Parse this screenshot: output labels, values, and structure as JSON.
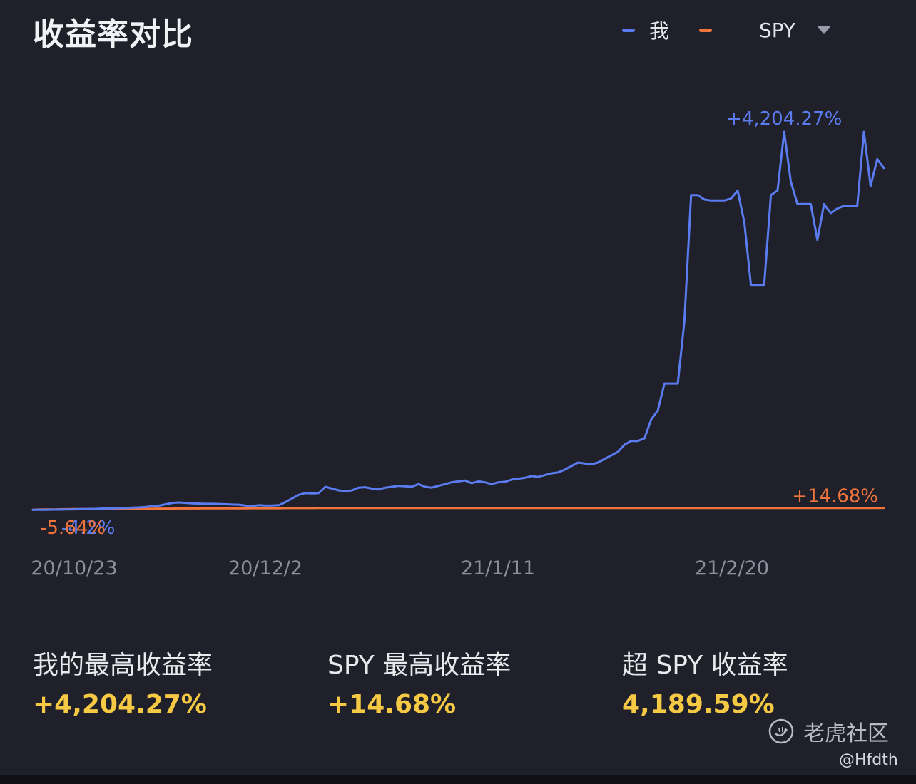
{
  "title": "收益率对比",
  "legend": {
    "series1": "我",
    "series2": "SPY"
  },
  "colors": {
    "mine": "#5b7cf0",
    "spy": "#f0743c",
    "accent": "#f6c944"
  },
  "chart_data": {
    "type": "line",
    "x_ticks": [
      "20/10/23",
      "20/12/2",
      "21/1/11",
      "21/2/20"
    ],
    "series": [
      {
        "name": "我",
        "y": [
          -5.64,
          -5.64,
          -5.64,
          -4.2,
          -4.2,
          -3,
          -2,
          0,
          1,
          3,
          5,
          8,
          10,
          12,
          14,
          18,
          20,
          25,
          35,
          40,
          55,
          70,
          75,
          70,
          65,
          62,
          60,
          60,
          58,
          55,
          52,
          50,
          40,
          35,
          45,
          40,
          42,
          45,
          80,
          120,
          160,
          180,
          175,
          180,
          250,
          230,
          210,
          200,
          210,
          240,
          245,
          230,
          220,
          240,
          250,
          260,
          255,
          250,
          280,
          250,
          240,
          260,
          280,
          300,
          310,
          320,
          290,
          310,
          300,
          280,
          300,
          305,
          330,
          340,
          350,
          370,
          360,
          380,
          400,
          410,
          440,
          480,
          520,
          510,
          500,
          520,
          560,
          600,
          640,
          720,
          760,
          760,
          790,
          1000,
          1100,
          1400,
          1400,
          1400,
          2100,
          3500,
          3500,
          3450,
          3440,
          3440,
          3440,
          3460,
          3550,
          3200,
          2500,
          2500,
          2500,
          3500,
          3550,
          4204.27,
          3650,
          3400,
          3400,
          3400,
          3000,
          3400,
          3300,
          3350,
          3380,
          3380,
          3380,
          4204.27,
          3600,
          3900,
          3800
        ]
      },
      {
        "name": "SPY",
        "y": [
          -5.64,
          -4,
          -3,
          -2,
          -1,
          0,
          1,
          2,
          2,
          3,
          3,
          4,
          4,
          5,
          5,
          5,
          6,
          6,
          6,
          7,
          7,
          7,
          8,
          8,
          8,
          8,
          9,
          9,
          9,
          10,
          10,
          10,
          10,
          11,
          11,
          11,
          11,
          11,
          12,
          12,
          12,
          12,
          12,
          13,
          13,
          13,
          13,
          13,
          13,
          13,
          14,
          14,
          14,
          14,
          14,
          14,
          14,
          14,
          14,
          14,
          14,
          14,
          14,
          14,
          14,
          14,
          14,
          14,
          14,
          14,
          14,
          14,
          14,
          14,
          14,
          14,
          14,
          14,
          14,
          14,
          14,
          14,
          14,
          14,
          14,
          14,
          14,
          14,
          14,
          14,
          14,
          14,
          14,
          14,
          14,
          14,
          14,
          14,
          14,
          14,
          14,
          14,
          14,
          14,
          14,
          14,
          14,
          14,
          14,
          14,
          14,
          14,
          14,
          14,
          14,
          14,
          14,
          14,
          14,
          14,
          14,
          14,
          14,
          14,
          14,
          14,
          14,
          14,
          14.68
        ]
      }
    ],
    "ylim": [
      -600,
      4800
    ],
    "grid": false,
    "annotations": [
      {
        "series": "我",
        "label": "+4,204.27%"
      },
      {
        "series": "SPY",
        "label": "+14.68%"
      },
      {
        "series": "SPY",
        "label": "-5.64%"
      },
      {
        "series": "我",
        "label": "-4.2%"
      }
    ]
  },
  "stats": [
    {
      "label": "我的最高收益率",
      "value": "+4,204.27%"
    },
    {
      "label": "SPY 最高收益率",
      "value": "+14.68%"
    },
    {
      "label": "超 SPY 收益率",
      "value": "4,189.59%"
    }
  ],
  "watermark": {
    "brand": "老虎社区",
    "handle": "@Hfdth"
  }
}
